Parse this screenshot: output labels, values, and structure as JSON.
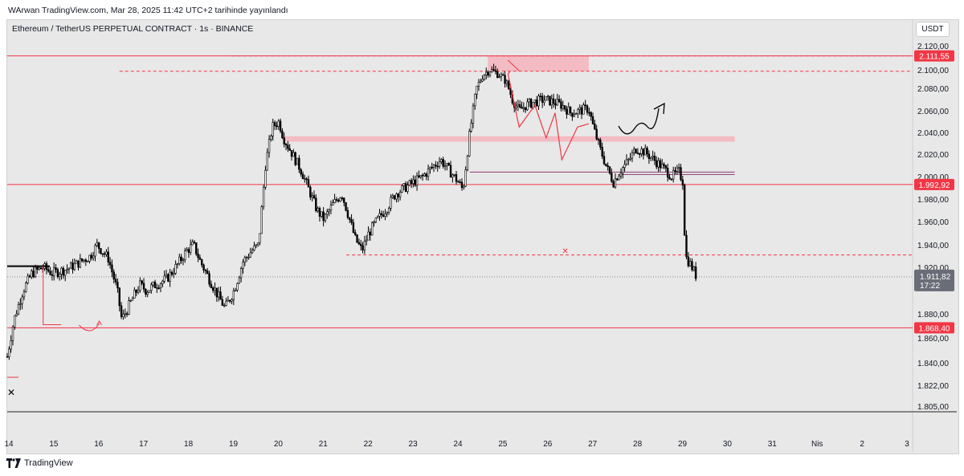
{
  "header": {
    "published": "WArwan TradingView.com, Mar 28, 2025 11:42 UTC+2 tarihinde yayınlandı",
    "symbol": "Ethereum / TetherUS PERPETUAL CONTRACT · 1s · BINANCE",
    "currency": "USDT"
  },
  "footer": {
    "brand": "TradingView"
  },
  "colors": {
    "background": "#e8e8e8",
    "candle": "#000000",
    "resistance_line": "#f23645",
    "zone_fill": "#f4b6bf",
    "price_label_bg": "#f23645",
    "current_label_bg": "#6a6d78"
  },
  "chart_data": {
    "type": "candlestick",
    "x_tick_labels": [
      "14",
      "15",
      "16",
      "17",
      "18",
      "19",
      "20",
      "21",
      "22",
      "23",
      "24",
      "25",
      "26",
      "27",
      "28",
      "29",
      "30",
      "31",
      "Nis",
      "2",
      "3"
    ],
    "y_tick_labels": [
      "2.120,00",
      "2.100,00",
      "2.080,00",
      "2.060,00",
      "2.040,00",
      "2.020,00",
      "2.000,00",
      "1.980,00",
      "1.960,00",
      "1.940,00",
      "1.920,00",
      "1.880,00",
      "1.860,00",
      "1.840,00",
      "1.822,00",
      "1.805,00"
    ],
    "y_ticks": [
      2120,
      2100,
      2080,
      2060,
      2040,
      2020,
      2000,
      1980,
      1960,
      1940,
      1920,
      1880,
      1860,
      1840,
      1822,
      1805
    ],
    "ylim": [
      1800,
      2125
    ],
    "xlim": [
      14,
      35.1
    ],
    "price_labels": [
      {
        "value": 2111.55,
        "text": "2.111,55"
      },
      {
        "value": 1992.92,
        "text": "1.992,92"
      },
      {
        "value": 1868.4,
        "text": "1.868,40"
      }
    ],
    "current_price": {
      "value": 1911.82,
      "text": "1.911,82",
      "countdown": "17:22"
    },
    "horizontal_lines": [
      {
        "value": 2111.55,
        "style": "solid"
      },
      {
        "value": 2111.55,
        "style": "dashed",
        "x_start": 19.0
      },
      {
        "value": 2098.5,
        "style": "dashed",
        "x_start": 16.5
      },
      {
        "value": 1992.92,
        "style": "solid"
      },
      {
        "value": 1868.4,
        "style": "solid"
      },
      {
        "value": 1931,
        "style": "dashed",
        "x_start": 21.55
      }
    ],
    "zones": [
      {
        "x0": 24.7,
        "x1": 26.95,
        "y0": 2098.5,
        "y1": 2111.5
      },
      {
        "x0": 20.15,
        "x1": 30.2,
        "y0": 2031.5,
        "y1": 2036.5
      }
    ],
    "anchors": [
      [
        14.0,
        1845
      ],
      [
        14.15,
        1875
      ],
      [
        14.35,
        1900
      ],
      [
        14.55,
        1915
      ],
      [
        14.8,
        1920
      ],
      [
        15.0,
        1915
      ],
      [
        15.3,
        1918
      ],
      [
        15.55,
        1923
      ],
      [
        15.85,
        1930
      ],
      [
        16.0,
        1940
      ],
      [
        16.25,
        1928
      ],
      [
        16.45,
        1900
      ],
      [
        16.55,
        1875
      ],
      [
        16.75,
        1890
      ],
      [
        16.95,
        1905
      ],
      [
        17.1,
        1900
      ],
      [
        17.3,
        1905
      ],
      [
        17.55,
        1910
      ],
      [
        17.75,
        1920
      ],
      [
        18.0,
        1935
      ],
      [
        18.15,
        1940
      ],
      [
        18.3,
        1925
      ],
      [
        18.5,
        1910
      ],
      [
        18.7,
        1895
      ],
      [
        18.85,
        1885
      ],
      [
        19.05,
        1900
      ],
      [
        19.25,
        1925
      ],
      [
        19.45,
        1935
      ],
      [
        19.6,
        1940
      ],
      [
        19.75,
        2010
      ],
      [
        19.9,
        2045
      ],
      [
        20.05,
        2050
      ],
      [
        20.15,
        2035
      ],
      [
        20.35,
        2020
      ],
      [
        20.55,
        2005
      ],
      [
        20.75,
        1985
      ],
      [
        20.9,
        1970
      ],
      [
        21.05,
        1962
      ],
      [
        21.25,
        1975
      ],
      [
        21.45,
        1985
      ],
      [
        21.6,
        1965
      ],
      [
        21.75,
        1945
      ],
      [
        21.9,
        1935
      ],
      [
        22.05,
        1950
      ],
      [
        22.25,
        1962
      ],
      [
        22.45,
        1972
      ],
      [
        22.65,
        1985
      ],
      [
        22.85,
        1990
      ],
      [
        23.05,
        1995
      ],
      [
        23.25,
        2000
      ],
      [
        23.45,
        2008
      ],
      [
        23.65,
        2015
      ],
      [
        23.85,
        2005
      ],
      [
        24.05,
        1995
      ],
      [
        24.15,
        1988
      ],
      [
        24.3,
        2040
      ],
      [
        24.45,
        2080
      ],
      [
        24.6,
        2095
      ],
      [
        24.75,
        2100
      ],
      [
        24.95,
        2095
      ],
      [
        25.1,
        2088
      ],
      [
        25.25,
        2070
      ],
      [
        25.4,
        2060
      ],
      [
        25.55,
        2065
      ],
      [
        25.75,
        2068
      ],
      [
        25.95,
        2070
      ],
      [
        26.15,
        2068
      ],
      [
        26.35,
        2065
      ],
      [
        26.55,
        2058
      ],
      [
        26.75,
        2060
      ],
      [
        26.95,
        2062
      ],
      [
        27.05,
        2045
      ],
      [
        27.2,
        2025
      ],
      [
        27.35,
        2008
      ],
      [
        27.5,
        1995
      ],
      [
        27.65,
        2005
      ],
      [
        27.85,
        2015
      ],
      [
        28.0,
        2025
      ],
      [
        28.2,
        2022
      ],
      [
        28.4,
        2015
      ],
      [
        28.6,
        2008
      ],
      [
        28.8,
        2000
      ],
      [
        28.95,
        2005
      ],
      [
        29.05,
        1995
      ],
      [
        29.1,
        1930
      ],
      [
        29.25,
        1920
      ],
      [
        29.35,
        1912
      ]
    ]
  }
}
